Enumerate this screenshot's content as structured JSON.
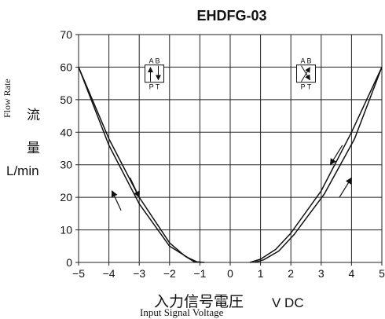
{
  "chart_data": {
    "type": "line",
    "title": "EHDFG-03",
    "ylabel_en": "Flow Rate",
    "ylabel_cn": [
      "流",
      "量"
    ],
    "yunit": "L/min",
    "xlabel_cn": "入力信号電圧",
    "xlabel_en": "Input Signal Voltage",
    "xunit": "V DC",
    "xlim": [
      -5,
      5
    ],
    "ylim": [
      0,
      70
    ],
    "xticks": [
      -5,
      -4,
      -3,
      -2,
      -1,
      0,
      1,
      2,
      3,
      4,
      5
    ],
    "xtick_labels": [
      "−5",
      "−4",
      "−3",
      "−2",
      "−1",
      "0",
      "1",
      "2",
      "3",
      "4",
      "5"
    ],
    "yticks": [
      0,
      10,
      20,
      30,
      40,
      50,
      60,
      70
    ],
    "ytick_labels": [
      "0",
      "10",
      "20",
      "30",
      "40",
      "50",
      "60",
      "70"
    ],
    "grid": true,
    "series": [
      {
        "x": [
          -5,
          -4,
          -3,
          -2,
          -1.5,
          -1.2,
          -0.95
        ],
        "y": [
          60,
          38,
          20,
          6,
          2,
          0.3,
          0
        ]
      },
      {
        "x": [
          -5,
          -4,
          -3,
          -2,
          -1.4,
          -1.1,
          -0.85
        ],
        "y": [
          60,
          36,
          18,
          5,
          1.5,
          0.2,
          0
        ]
      },
      {
        "x": [
          0.65,
          1,
          1.5,
          2,
          3,
          4,
          5
        ],
        "y": [
          0,
          1,
          4,
          9,
          22,
          40,
          60
        ]
      },
      {
        "x": [
          0.8,
          1.1,
          1.6,
          2.1,
          3.1,
          4.1,
          5
        ],
        "y": [
          0,
          0.8,
          3.5,
          8.5,
          21,
          38,
          60
        ]
      }
    ],
    "annotations": [
      {
        "type": "valve-symbol",
        "x": -2.5,
        "y": 58,
        "ports_top": "A B",
        "ports_bottom": "P T",
        "flow": "parallel"
      },
      {
        "type": "valve-symbol",
        "x": 2.5,
        "y": 58,
        "ports_top": "A B",
        "ports_bottom": "P T",
        "flow": "crossed"
      },
      {
        "type": "arrow",
        "from": [
          -3.6,
          16
        ],
        "to": [
          -3.9,
          22
        ]
      },
      {
        "type": "arrow",
        "from": [
          -3.3,
          26
        ],
        "to": [
          -3.0,
          20
        ]
      },
      {
        "type": "arrow",
        "from": [
          3.7,
          36
        ],
        "to": [
          3.3,
          30
        ]
      },
      {
        "type": "arrow",
        "from": [
          3.6,
          20
        ],
        "to": [
          4.0,
          26
        ]
      }
    ]
  }
}
